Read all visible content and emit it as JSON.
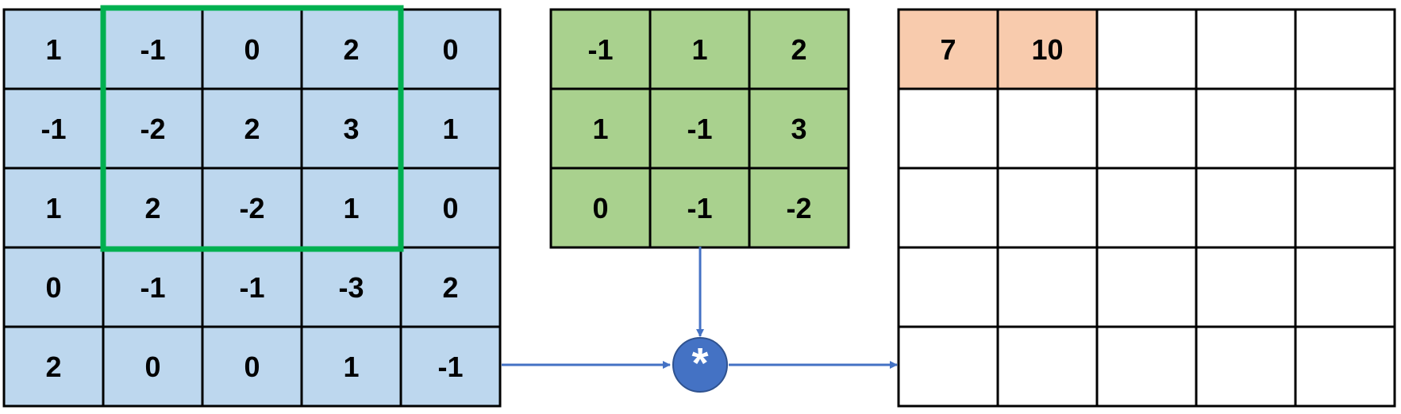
{
  "input_matrix": {
    "values": [
      [
        "1",
        "-1",
        "0",
        "2",
        "0"
      ],
      [
        "-1",
        "-2",
        "2",
        "3",
        "1"
      ],
      [
        "1",
        "2",
        "-2",
        "1",
        "0"
      ],
      [
        "0",
        "-1",
        "-1",
        "-3",
        "2"
      ],
      [
        "2",
        "0",
        "0",
        "1",
        "-1"
      ]
    ],
    "fill_color": "#bdd7ee",
    "window": {
      "row": 0,
      "col": 1,
      "size": 3,
      "color": "#00b050"
    }
  },
  "kernel_matrix": {
    "values": [
      [
        "-1",
        "1",
        "2"
      ],
      [
        "1",
        "-1",
        "3"
      ],
      [
        "0",
        "-1",
        "-2"
      ]
    ],
    "fill_color": "#a9d18e"
  },
  "output_matrix": {
    "values": [
      [
        "7",
        "10",
        "",
        "",
        ""
      ],
      [
        "",
        "",
        "",
        "",
        ""
      ],
      [
        "",
        "",
        "",
        "",
        ""
      ],
      [
        "",
        "",
        "",
        "",
        ""
      ],
      [
        "",
        "",
        "",
        "",
        ""
      ]
    ],
    "filled_color": "#f8cbad",
    "filled_cells": [
      [
        0,
        0
      ],
      [
        0,
        1
      ]
    ]
  },
  "operator": {
    "symbol": "*",
    "icon": "convolution-operator-icon",
    "color": "#4472c4"
  },
  "arrow_color": "#4472c4"
}
